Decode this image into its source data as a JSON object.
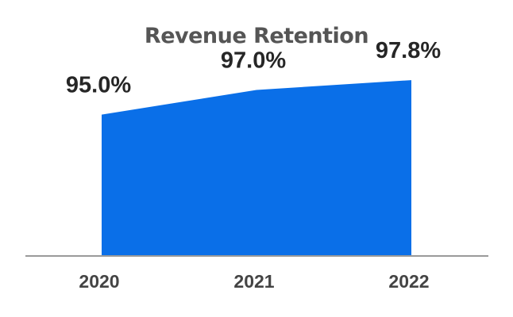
{
  "chart_data": {
    "type": "area",
    "title": "Revenue Retention",
    "categories": [
      "2020",
      "2021",
      "2022"
    ],
    "series": [
      {
        "values": [
          95.0,
          97.0,
          97.8
        ],
        "labels": [
          "95.0%",
          "97.0%",
          "97.8%"
        ]
      }
    ],
    "ylim": [
      83.5,
      98.0
    ],
    "xlabel": "",
    "ylabel": "",
    "grid": false,
    "legend": "none",
    "colors": {
      "area": "#0a6fe8",
      "axis": "#9a9a9a",
      "title": "#555555",
      "data_label": "#262626",
      "tick_label": "#444444"
    }
  }
}
